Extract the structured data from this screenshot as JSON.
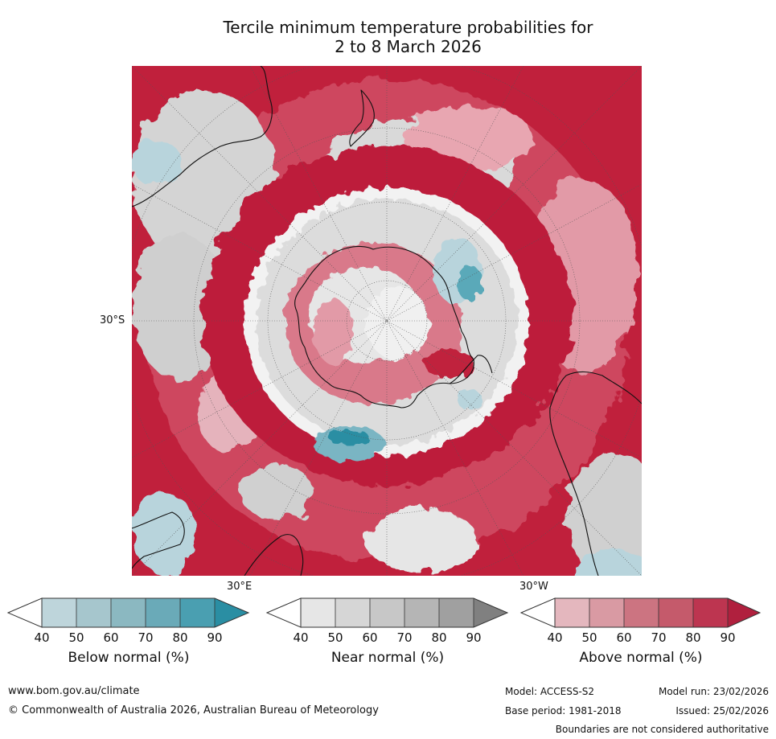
{
  "title_line1": "Tercile minimum temperature probabilities for",
  "title_line2": "2 to 8 March 2026",
  "map": {
    "lat_label": "30°S",
    "lon_label_east": "30°E",
    "lon_label_west": "30°W",
    "colors": {
      "above_dominant": "#c0203c",
      "above_mid": "#d96a7e",
      "above_light": "#e8a6b1",
      "near_light": "#e4e4e4",
      "near_mid": "#c8c8c8",
      "below_light": "#b8d4dc",
      "below_mid": "#5aa9b9",
      "below_dark": "#2a8ea3",
      "coastline": "#111111"
    }
  },
  "colorbars": [
    {
      "name": "below",
      "caption": "Below normal (%)",
      "ticks": [
        "40",
        "50",
        "60",
        "70",
        "80",
        "90"
      ],
      "colors": [
        "#bed5db",
        "#a6c6cd",
        "#8bb8c1",
        "#6aaab8",
        "#4a9fb1",
        "#2a8ea3"
      ]
    },
    {
      "name": "near",
      "caption": "Near normal (%)",
      "ticks": [
        "40",
        "50",
        "60",
        "70",
        "80",
        "90"
      ],
      "colors": [
        "#e6e6e6",
        "#d6d6d6",
        "#c7c7c7",
        "#b5b5b5",
        "#a0a0a0",
        "#808080"
      ]
    },
    {
      "name": "above",
      "caption": "Above normal (%)",
      "ticks": [
        "40",
        "50",
        "60",
        "70",
        "80",
        "90"
      ],
      "colors": [
        "#e4b7be",
        "#d99aa3",
        "#cc7481",
        "#c55a6b",
        "#bd3550",
        "#b0203e"
      ]
    }
  ],
  "footer": {
    "website": "www.bom.gov.au/climate",
    "copyright": "© Commonwealth of Australia 2026, Australian Bureau of Meteorology",
    "model": "Model: ACCESS-S2",
    "model_run": "Model run: 23/02/2026",
    "base_period": "Base period: 1981-2018",
    "issued": "Issued: 25/02/2026",
    "disclaimer": "Boundaries are not considered authoritative"
  }
}
